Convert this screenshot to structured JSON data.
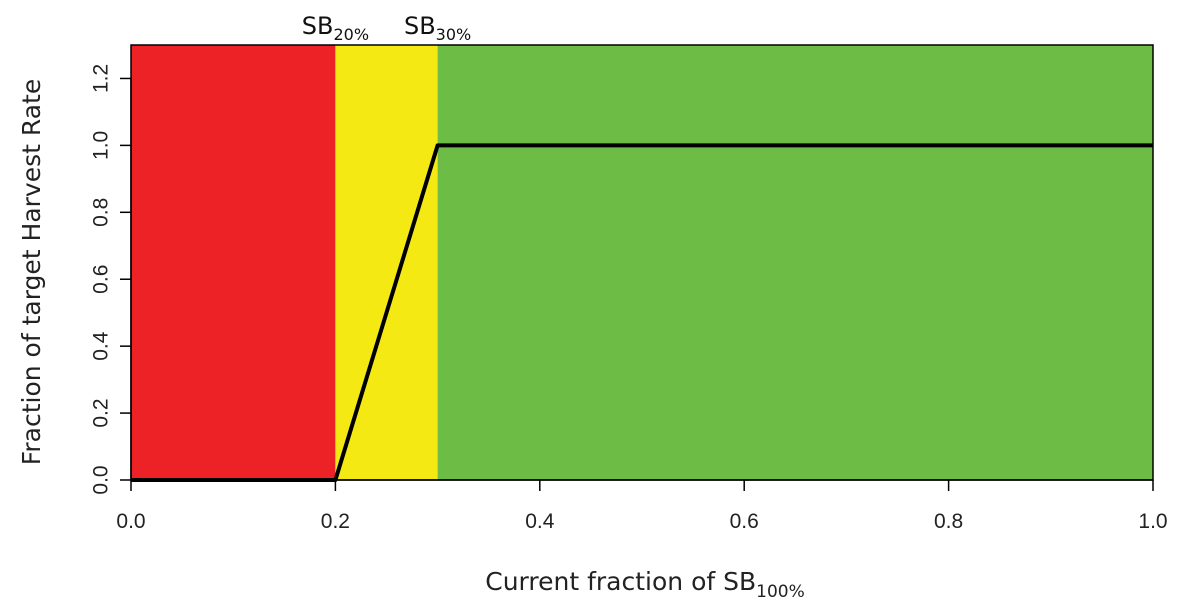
{
  "chart_data": {
    "type": "line",
    "xlabel": {
      "main": "Current fraction of SB",
      "sub": "100%"
    },
    "ylabel": "Fraction of target Harvest Rate",
    "xlim": [
      0,
      1.0
    ],
    "ylim": [
      0,
      1.3
    ],
    "x_ticks": [
      "0.0",
      "0.2",
      "0.4",
      "0.6",
      "0.8",
      "1.0"
    ],
    "y_ticks": [
      "0.0",
      "0.2",
      "0.4",
      "0.6",
      "0.8",
      "1.0",
      "1.2"
    ],
    "zones": [
      {
        "name": "red",
        "x_start": 0.0,
        "x_end": 0.2,
        "color": "#ec2227"
      },
      {
        "name": "yellow",
        "x_start": 0.2,
        "x_end": 0.3,
        "color": "#f5e914"
      },
      {
        "name": "green",
        "x_start": 0.3,
        "x_end": 1.0,
        "color": "#6cbc45"
      }
    ],
    "series": [
      {
        "x": [
          0.0,
          0.2,
          0.3,
          1.0
        ],
        "y": [
          0.0,
          0.0,
          1.0,
          1.0
        ],
        "color": "#000000"
      }
    ],
    "annotations": [
      {
        "main": "SB",
        "sub": "20%",
        "x": 0.2
      },
      {
        "main": "SB",
        "sub": "30%",
        "x": 0.3
      }
    ],
    "grid": false
  }
}
